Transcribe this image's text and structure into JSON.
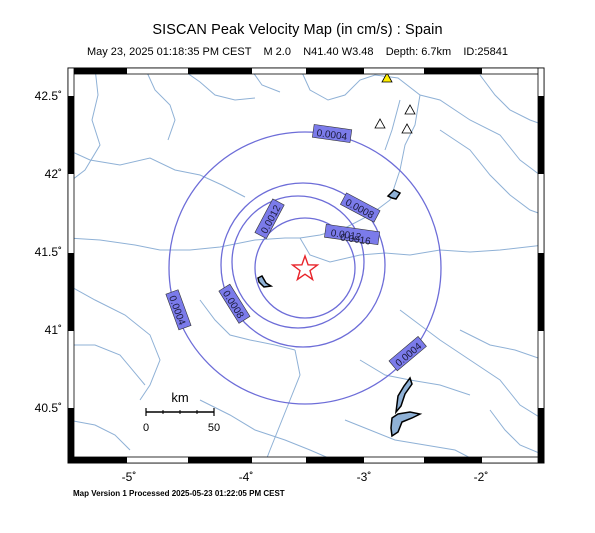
{
  "header": {
    "title": "SISCAN Peak Velocity Map (in cm/s) : Spain",
    "subtitle": "May 23, 2025 01:18:35 PM CEST    M 2.0    N41.40 W3.48    Depth: 6.7km    ID:25841"
  },
  "footer": "Map Version 1 Processed 2025-05-23 01:22:05 PM CEST",
  "axes": {
    "latitude_labels": [
      "42.5˚",
      "42˚",
      "41.5˚",
      "41˚",
      "40.5˚"
    ],
    "longitude_labels": [
      "-5˚",
      "-4˚",
      "-3˚",
      "-2˚"
    ]
  },
  "contour_labels": [
    "0.0004",
    "0.0008",
    "0.0012",
    "0.0012",
    "0.0016",
    "0.0008",
    "0.0004",
    "0.0004"
  ],
  "scale_bar": {
    "unit": "km",
    "min_label": "0",
    "max_label": "50"
  },
  "epicenter": {
    "lat": 41.4,
    "lon": -3.48,
    "symbol": "star"
  },
  "colors": {
    "contour": "#6d6dd8",
    "label_fill": "#7b7bea",
    "rivers": "#8fb1d6",
    "epicenter": "#e8232a",
    "station_highlight": "#ffee00",
    "frame": "#000000"
  }
}
